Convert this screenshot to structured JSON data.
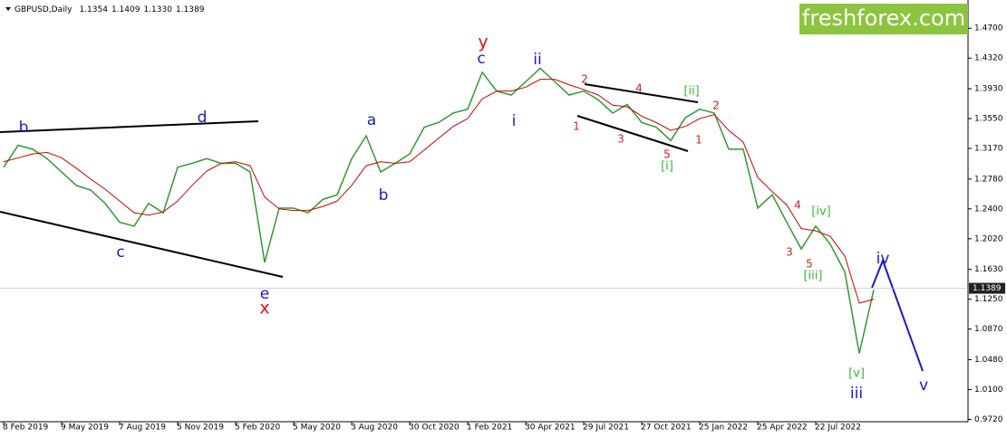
{
  "chart_data": {
    "type": "line",
    "symbol": "GBPUSD,Daily",
    "ohlc": [
      {
        "value": 1.1354,
        "label": "1.1354"
      },
      {
        "value": 1.1409,
        "label": "1.1409"
      },
      {
        "value": 1.133,
        "label": "1.1330"
      },
      {
        "value": 1.1389,
        "label": "1.1389"
      }
    ],
    "brand": "freshforex.com",
    "categories": [
      "8 Feb 2019",
      null,
      null,
      null,
      "9 May 2019",
      null,
      null,
      null,
      "7 Aug 2019",
      null,
      null,
      null,
      "5 Nov 2019",
      null,
      null,
      null,
      "5 Feb 2020",
      null,
      null,
      null,
      "5 May 2020",
      null,
      null,
      null,
      "3 Aug 2020",
      null,
      null,
      null,
      "30 Oct 2020",
      null,
      null,
      null,
      "1 Feb 2021",
      null,
      null,
      null,
      "30 Apr 2021",
      null,
      null,
      null,
      "29 Jul 2021",
      null,
      null,
      null,
      "27 Oct 2021",
      null,
      null,
      null,
      "25 Jan 2022",
      null,
      null,
      null,
      "25 Apr 2022",
      null,
      null,
      null,
      "22 Jul 2022",
      null,
      null,
      null,
      null
    ],
    "series": [
      {
        "color": "#2f9a2f",
        "values": [
          1.293,
          1.321,
          1.316,
          1.304,
          1.287,
          1.27,
          1.264,
          1.247,
          1.223,
          1.218,
          1.247,
          1.235,
          1.293,
          1.298,
          1.304,
          1.298,
          1.298,
          1.287,
          1.172,
          1.241,
          1.241,
          1.235,
          1.252,
          1.258,
          1.304,
          1.333,
          1.287,
          1.298,
          1.31,
          1.344,
          1.35,
          1.362,
          1.367,
          1.414,
          1.39,
          1.385,
          1.402,
          1.419,
          1.402,
          1.385,
          1.39,
          1.379,
          1.362,
          1.373,
          1.35,
          1.344,
          1.327,
          1.356,
          1.367,
          1.362,
          1.316,
          1.316,
          1.241,
          1.258,
          1.223,
          1.189,
          1.218,
          1.195,
          1.16,
          1.056,
          1.137
        ]
      },
      {
        "color": "#cc0000",
        "values": [
          1.3,
          1.305,
          1.31,
          1.312,
          1.305,
          1.292,
          1.278,
          1.265,
          1.25,
          1.235,
          1.232,
          1.236,
          1.25,
          1.27,
          1.288,
          1.298,
          1.3,
          1.295,
          1.255,
          1.24,
          1.238,
          1.238,
          1.243,
          1.25,
          1.27,
          1.295,
          1.3,
          1.298,
          1.3,
          1.315,
          1.33,
          1.345,
          1.355,
          1.38,
          1.39,
          1.39,
          1.395,
          1.405,
          1.405,
          1.398,
          1.392,
          1.385,
          1.372,
          1.37,
          1.358,
          1.35,
          1.34,
          1.345,
          1.355,
          1.36,
          1.34,
          1.325,
          1.28,
          1.262,
          1.245,
          1.215,
          1.212,
          1.205,
          1.18,
          1.12,
          1.125
        ]
      }
    ],
    "ylim": [
      0.969,
      1.506
    ],
    "yticks": [
      {
        "value": 1.47,
        "label": "1.4700"
      },
      {
        "value": 1.432,
        "label": "1.4320"
      },
      {
        "value": 1.393,
        "label": "1.3930"
      },
      {
        "value": 1.355,
        "label": "1.3550"
      },
      {
        "value": 1.317,
        "label": "1.3170"
      },
      {
        "value": 1.278,
        "label": "1.2780"
      },
      {
        "value": 1.24,
        "label": "1.2400"
      },
      {
        "value": 1.202,
        "label": "1.2020"
      },
      {
        "value": 1.163,
        "label": "1.1630"
      },
      {
        "value": 1.125,
        "label": "1.1250"
      },
      {
        "value": 1.087,
        "label": "1.0870"
      },
      {
        "value": 1.048,
        "label": "1.0480"
      },
      {
        "value": 1.01,
        "label": "1.0100"
      },
      {
        "value": 0.972,
        "label": "0.9720"
      }
    ],
    "last_price": {
      "value": 1.1389,
      "label": "1.1389"
    },
    "annotations": [
      {
        "text": "b",
        "color": "#1a1acc"
      },
      {
        "text": "d",
        "color": "#1a1acc"
      },
      {
        "text": "c",
        "color": "#1a1acc"
      },
      {
        "text": "e",
        "color": "#1a1acc"
      },
      {
        "text": "x",
        "color": "#dd1111"
      },
      {
        "text": "y",
        "color": "#dd1111"
      },
      {
        "text": "c",
        "color": "#1a1acc"
      },
      {
        "text": "a",
        "color": "#1a1acc"
      },
      {
        "text": "b",
        "color": "#1a1acc"
      },
      {
        "text": "ii",
        "color": "#1a1acc"
      },
      {
        "text": "i",
        "color": "#1a1acc"
      },
      {
        "text": "2",
        "color": "#cc2222"
      },
      {
        "text": "4",
        "color": "#cc2222"
      },
      {
        "text": "1",
        "color": "#cc2222"
      },
      {
        "text": "3",
        "color": "#cc2222"
      },
      {
        "text": "5",
        "color": "#cc2222"
      },
      {
        "text": "[i]",
        "color": "#33bb33"
      },
      {
        "text": "[ii]",
        "color": "#33bb33"
      },
      {
        "text": "1",
        "color": "#cc2222"
      },
      {
        "text": "2",
        "color": "#cc2222"
      },
      {
        "text": "4",
        "color": "#cc2222"
      },
      {
        "text": "[iv]",
        "color": "#33bb33"
      },
      {
        "text": "3",
        "color": "#cc2222"
      },
      {
        "text": "5",
        "color": "#cc2222"
      },
      {
        "text": "[iii]",
        "color": "#33bb33"
      },
      {
        "text": "iv",
        "color": "#1a1acc"
      },
      {
        "text": "[v]",
        "color": "#33bb33"
      },
      {
        "text": "iii",
        "color": "#1a1acc"
      },
      {
        "text": "v",
        "color": "#1a1acc"
      }
    ]
  }
}
